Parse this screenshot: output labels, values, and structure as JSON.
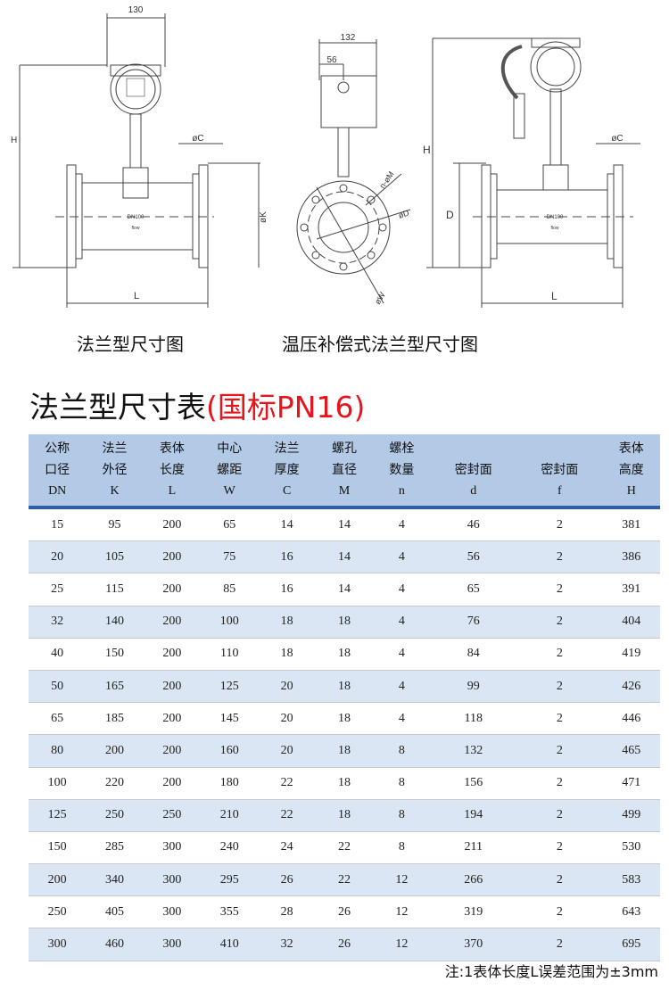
{
  "drawings": {
    "left": {
      "caption": "法兰型尺寸图",
      "dim_width": "130",
      "dim_height": "H",
      "dim_length": "L",
      "dim_flange_thickness": "øC",
      "dim_flange_diameter": "øK",
      "nameplate": "DN100",
      "flow_mark": "flow"
    },
    "middle": {
      "dim_width": "132",
      "dim_offset": "56",
      "dim_bolt_holes": "n-øM",
      "dim_seal": "øD",
      "dim_pitch": "øW"
    },
    "right": {
      "caption": "温压补偿式法兰型尺寸图",
      "dim_height": "H",
      "dim_length": "L",
      "dim_d": "D",
      "dim_flange_thickness": "øC",
      "nameplate": "DN100",
      "flow_mark": "flow"
    }
  },
  "table": {
    "title": "法兰型尺寸表",
    "title_suffix": "(国标PN16)",
    "title_suffix_color": "#e8141c",
    "header_color": "#b3cae6",
    "alt_row_color": "#dbe6f4",
    "columns": [
      {
        "line1": "公称",
        "line2": "口径",
        "symbol": "DN"
      },
      {
        "line1": "法兰",
        "line2": "外径",
        "symbol": "K"
      },
      {
        "line1": "表体",
        "line2": "长度",
        "symbol": "L"
      },
      {
        "line1": "中心",
        "line2": "螺距",
        "symbol": "W"
      },
      {
        "line1": "法兰",
        "line2": "厚度",
        "symbol": "C"
      },
      {
        "line1": "螺孔",
        "line2": "直径",
        "symbol": "M"
      },
      {
        "line1": "螺栓",
        "line2": "数量",
        "symbol": "n"
      },
      {
        "line1": "",
        "line2": "密封面",
        "symbol": "d"
      },
      {
        "line1": "",
        "line2": "密封面",
        "symbol": "f"
      },
      {
        "line1": "表体",
        "line2": "高度",
        "symbol": "H"
      }
    ],
    "rows": [
      [
        "15",
        "95",
        "200",
        "65",
        "14",
        "14",
        "4",
        "46",
        "2",
        "381"
      ],
      [
        "20",
        "105",
        "200",
        "75",
        "16",
        "14",
        "4",
        "56",
        "2",
        "386"
      ],
      [
        "25",
        "115",
        "200",
        "85",
        "16",
        "14",
        "4",
        "65",
        "2",
        "391"
      ],
      [
        "32",
        "140",
        "200",
        "100",
        "18",
        "18",
        "4",
        "76",
        "2",
        "404"
      ],
      [
        "40",
        "150",
        "200",
        "110",
        "18",
        "18",
        "4",
        "84",
        "2",
        "419"
      ],
      [
        "50",
        "165",
        "200",
        "125",
        "20",
        "18",
        "4",
        "99",
        "2",
        "426"
      ],
      [
        "65",
        "185",
        "200",
        "145",
        "20",
        "18",
        "4",
        "118",
        "2",
        "446"
      ],
      [
        "80",
        "200",
        "200",
        "160",
        "20",
        "18",
        "8",
        "132",
        "2",
        "465"
      ],
      [
        "100",
        "220",
        "200",
        "180",
        "22",
        "18",
        "8",
        "156",
        "2",
        "471"
      ],
      [
        "125",
        "250",
        "250",
        "210",
        "22",
        "18",
        "8",
        "194",
        "2",
        "499"
      ],
      [
        "150",
        "285",
        "300",
        "240",
        "24",
        "22",
        "8",
        "211",
        "2",
        "530"
      ],
      [
        "200",
        "340",
        "300",
        "295",
        "26",
        "22",
        "12",
        "266",
        "2",
        "583"
      ],
      [
        "250",
        "405",
        "300",
        "355",
        "28",
        "26",
        "12",
        "319",
        "2",
        "643"
      ],
      [
        "300",
        "460",
        "300",
        "410",
        "32",
        "26",
        "12",
        "370",
        "2",
        "695"
      ]
    ],
    "note": "注:1表体长度L误差范围为±3mm"
  }
}
